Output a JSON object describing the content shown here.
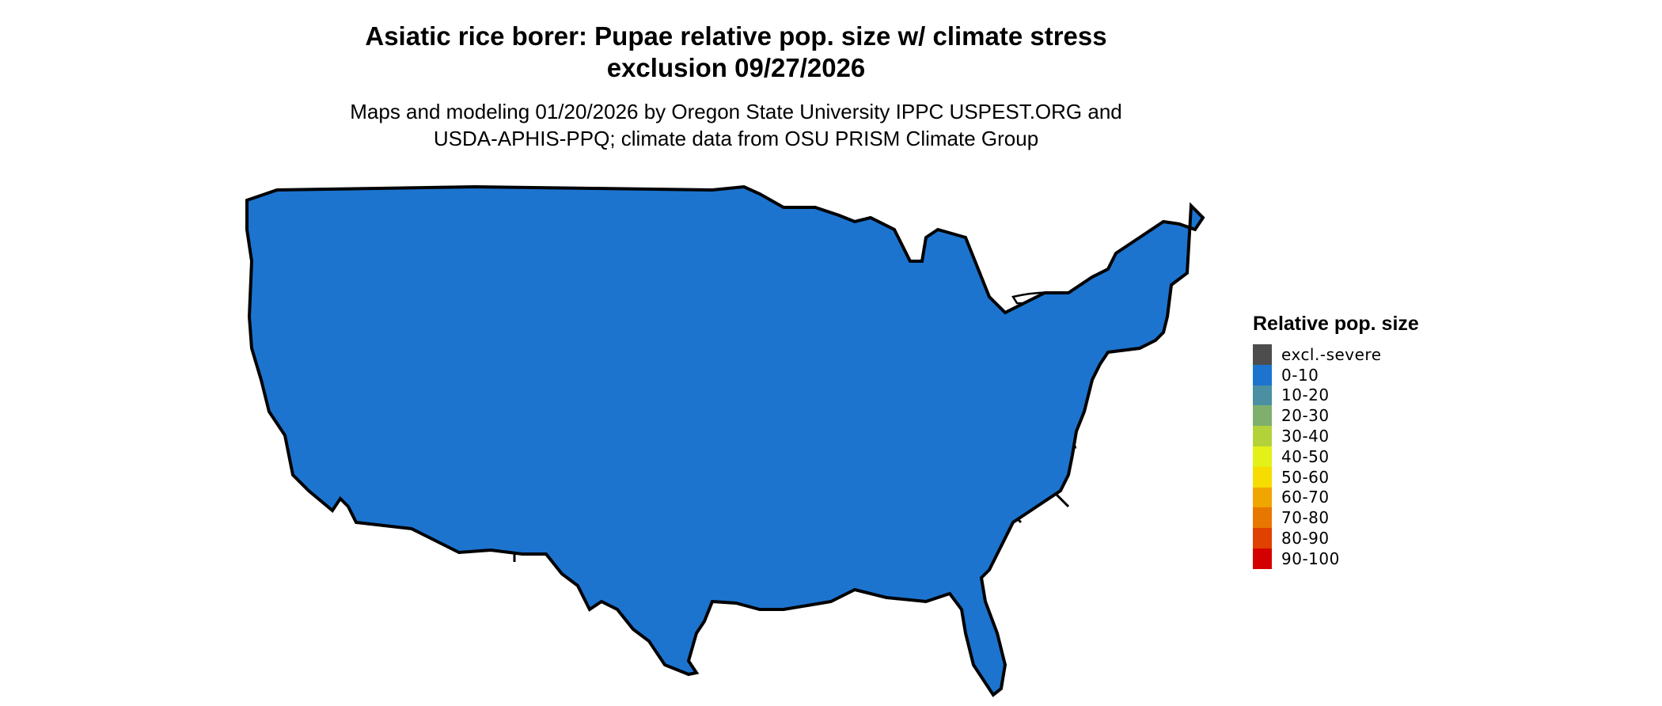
{
  "title": {
    "line1": "Asiatic rice borer: Pupae relative pop. size w/ climate stress",
    "line2": "exclusion 09/27/2026"
  },
  "subtitle": {
    "line1": "Maps and modeling 01/20/2026 by Oregon State University IPPC USPEST.ORG and",
    "line2": "USDA-APHIS-PPQ; climate data from OSU PRISM Climate Group"
  },
  "legend": {
    "title": "Relative pop. size",
    "items": [
      {
        "label": "excl.-severe",
        "color": "#4d4d4d"
      },
      {
        "label": "0-10",
        "color": "#1c74cf"
      },
      {
        "label": "10-20",
        "color": "#4a8fa2"
      },
      {
        "label": "20-30",
        "color": "#7faf6d"
      },
      {
        "label": "30-40",
        "color": "#b3d23a"
      },
      {
        "label": "40-50",
        "color": "#e3f01a"
      },
      {
        "label": "50-60",
        "color": "#f7dc00"
      },
      {
        "label": "60-70",
        "color": "#f0a500"
      },
      {
        "label": "70-80",
        "color": "#e87700"
      },
      {
        "label": "80-90",
        "color": "#e04000"
      },
      {
        "label": "90-100",
        "color": "#d40000"
      }
    ]
  },
  "map": {
    "base_color": "#1c74cf",
    "border_color": "#000000",
    "hotspot_palette": [
      "#f7dc00",
      "#f0a500",
      "#e3f01a",
      "#7faf6d"
    ]
  }
}
